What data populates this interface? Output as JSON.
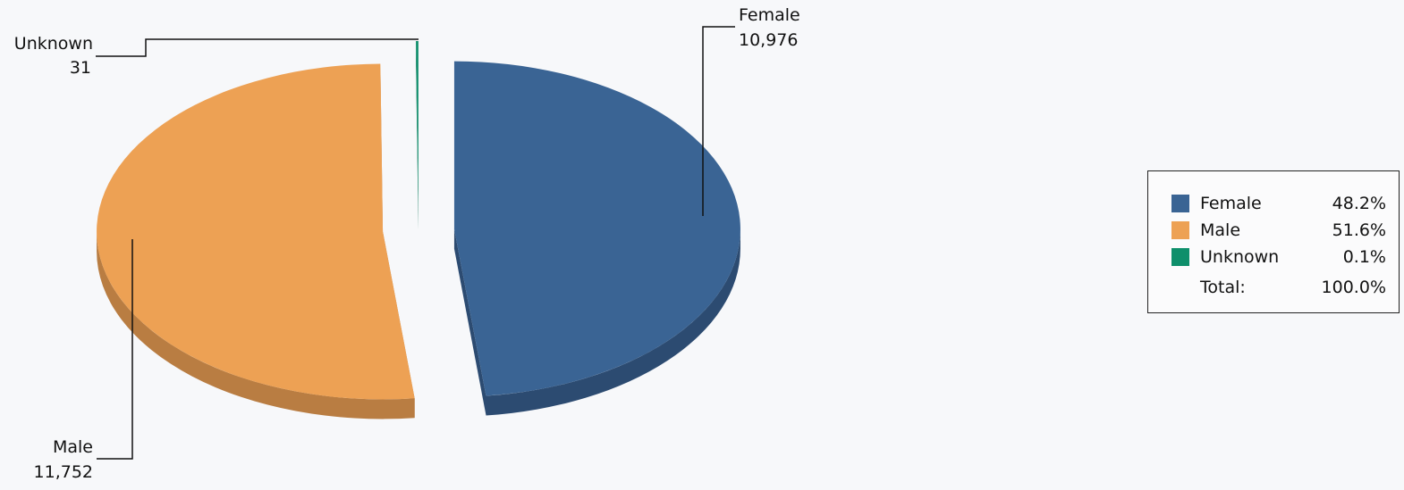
{
  "chart_data": {
    "type": "pie",
    "series": [
      {
        "name": "Female",
        "value": 10976,
        "percent": "48.2%",
        "color": "#3a6494",
        "side_color": "#2c4b71"
      },
      {
        "name": "Male",
        "value": 11752,
        "percent": "51.6%",
        "color": "#eda154",
        "side_color": "#b97d42"
      },
      {
        "name": "Unknown",
        "value": 31,
        "percent": "0.1%",
        "color": "#0e8f6b",
        "side_color": "#0b6e52"
      }
    ],
    "data_labels": {
      "female": {
        "name": "Female",
        "value": "10,976"
      },
      "male": {
        "name": "Male",
        "value": "11,752"
      },
      "unknown": {
        "name": "Unknown",
        "value": "31"
      }
    },
    "legend": {
      "placement": "right",
      "items": [
        {
          "label": "Female",
          "percent": "48.2%",
          "color": "#3a6494"
        },
        {
          "label": "Male",
          "percent": "51.6%",
          "color": "#eda154"
        },
        {
          "label": "Unknown",
          "percent": "0.1%",
          "color": "#0e8f6b"
        }
      ],
      "total_label": "Total:",
      "total_value": "100.0%"
    },
    "style": "3d-exploded"
  }
}
